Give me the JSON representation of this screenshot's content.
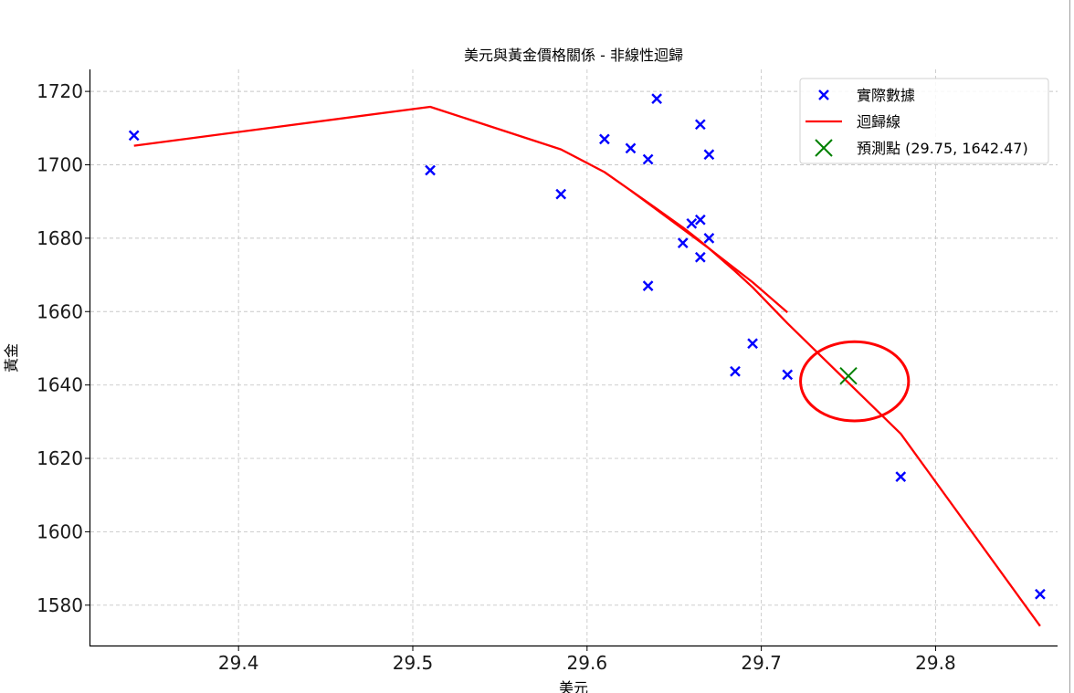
{
  "chart_data": {
    "type": "scatter",
    "title": "美元與黃金價格關係 - 非線性迴歸",
    "xlabel": "美元",
    "ylabel": "黃金",
    "xlim": [
      29.315,
      29.87
    ],
    "ylim": [
      1569,
      1726
    ],
    "xticks": [
      29.4,
      29.5,
      29.6,
      29.7,
      29.8
    ],
    "xtick_labels": [
      "29.4",
      "29.5",
      "29.6",
      "29.7",
      "29.8"
    ],
    "yticks": [
      1580,
      1600,
      1620,
      1640,
      1660,
      1680,
      1700,
      1720
    ],
    "ytick_labels": [
      "1580",
      "1600",
      "1620",
      "1640",
      "1660",
      "1680",
      "1700",
      "1720"
    ],
    "grid": true,
    "legend_position": "top-right",
    "series": [
      {
        "name": "實際數據",
        "kind": "scatter",
        "marker": "x",
        "color": "#0000ff",
        "points": [
          [
            29.34,
            1708
          ],
          [
            29.51,
            1698.5
          ],
          [
            29.585,
            1692
          ],
          [
            29.61,
            1707
          ],
          [
            29.625,
            1704.5
          ],
          [
            29.635,
            1701.5
          ],
          [
            29.635,
            1667
          ],
          [
            29.64,
            1718
          ],
          [
            29.655,
            1678.7
          ],
          [
            29.66,
            1684
          ],
          [
            29.665,
            1711
          ],
          [
            29.665,
            1685
          ],
          [
            29.665,
            1674.8
          ],
          [
            29.67,
            1702.8
          ],
          [
            29.67,
            1680
          ],
          [
            29.685,
            1643.7
          ],
          [
            29.695,
            1651.3
          ],
          [
            29.715,
            1642.8
          ],
          [
            29.78,
            1615
          ],
          [
            29.86,
            1583
          ]
        ]
      },
      {
        "name": "迴歸線",
        "kind": "line",
        "color": "#ff0000",
        "points": [
          [
            29.34,
            1705.2
          ],
          [
            29.51,
            1715.8
          ],
          [
            29.585,
            1704.2
          ],
          [
            29.61,
            1698
          ],
          [
            29.625,
            1693
          ],
          [
            29.635,
            1689.7
          ],
          [
            29.64,
            1688
          ],
          [
            29.655,
            1682.9
          ],
          [
            29.66,
            1681.1
          ],
          [
            29.665,
            1679.2
          ],
          [
            29.67,
            1677.2
          ],
          [
            29.685,
            1671
          ],
          [
            29.695,
            1666.6
          ],
          [
            29.715,
            1656.8
          ],
          [
            29.78,
            1626.7
          ],
          [
            29.86,
            1574.3
          ]
        ],
        "overlay_points": [
          [
            29.625,
            1693
          ],
          [
            29.67,
            1677.2
          ],
          [
            29.695,
            1668
          ],
          [
            29.715,
            1659.8
          ]
        ]
      },
      {
        "name": "預測點 (29.75, 1642.47)",
        "kind": "scatter",
        "marker": "x",
        "color": "#008000",
        "points": [
          [
            29.75,
            1642.47
          ]
        ]
      }
    ],
    "annotations": [
      {
        "type": "ellipse",
        "color": "#ff0000",
        "center": [
          29.7535,
          1641
        ],
        "rx_data": 0.031,
        "ry_data": 10.8
      }
    ]
  }
}
